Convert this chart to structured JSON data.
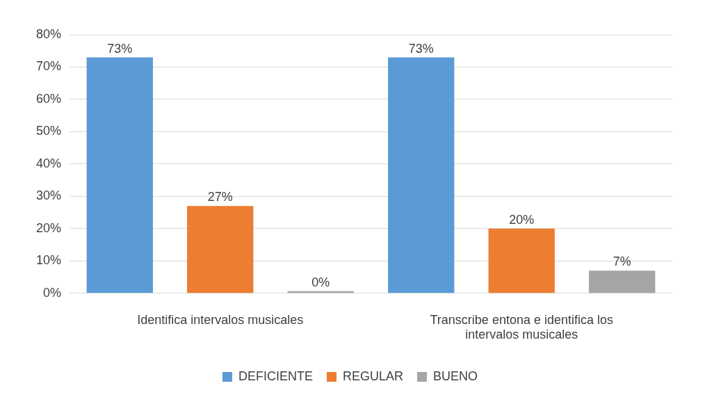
{
  "chart_data": {
    "type": "bar",
    "categories": [
      "Identifica intervalos musicales",
      "Transcribe entona e identifica los intervalos musicales"
    ],
    "series": [
      {
        "name": "DEFICIENTE",
        "color": "#5b9bd5",
        "values": [
          73,
          73
        ],
        "value_labels": [
          "73%",
          "73%"
        ]
      },
      {
        "name": "REGULAR",
        "color": "#ed7d31",
        "values": [
          27,
          20
        ],
        "value_labels": [
          "27%",
          "20%"
        ]
      },
      {
        "name": "BUENO",
        "color": "#a5a5a5",
        "values": [
          0,
          7
        ],
        "value_labels": [
          "0%",
          "7%"
        ]
      }
    ],
    "ylim": [
      0,
      80
    ],
    "yticks": [
      {
        "value": 0,
        "label": "0%"
      },
      {
        "value": 10,
        "label": "10%"
      },
      {
        "value": 20,
        "label": "20%"
      },
      {
        "value": 30,
        "label": "30%"
      },
      {
        "value": 40,
        "label": "40%"
      },
      {
        "value": 50,
        "label": "50%"
      },
      {
        "value": 60,
        "label": "60%"
      },
      {
        "value": 70,
        "label": "70%"
      },
      {
        "value": 80,
        "label": "80%"
      }
    ],
    "grid": "y",
    "legend": "bottom"
  }
}
